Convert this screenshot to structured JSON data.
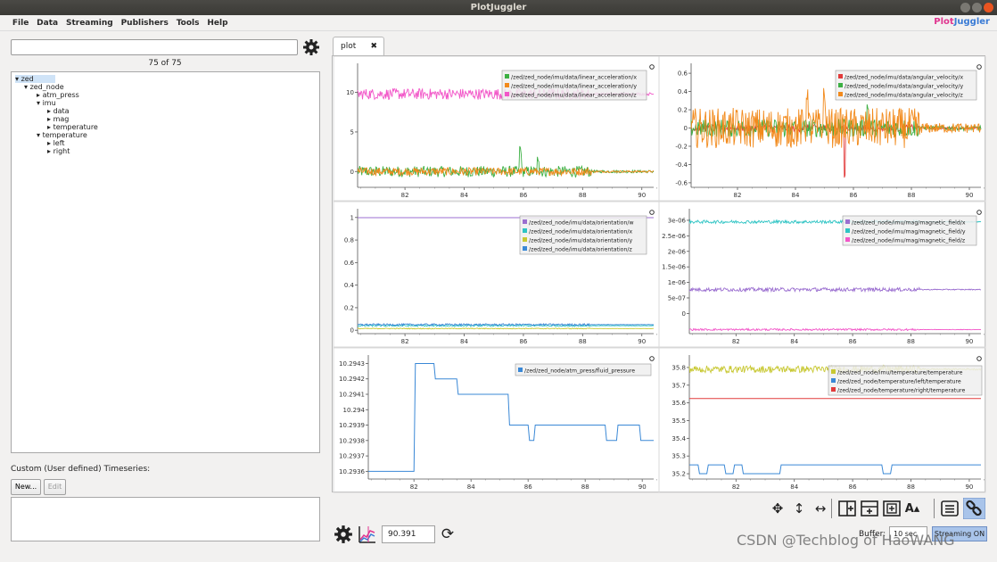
{
  "window": {
    "title": "PlotJuggler"
  },
  "menu": [
    "File",
    "Data",
    "Streaming",
    "Publishers",
    "Tools",
    "Help"
  ],
  "logo": {
    "part1": "Plot",
    "part2": "Juggler"
  },
  "left": {
    "count": "75 of 75",
    "tree": [
      {
        "label": "zed",
        "depth": 0,
        "arrow": "▾"
      },
      {
        "label": "zed_node",
        "depth": 1,
        "arrow": "▾"
      },
      {
        "label": "atm_press",
        "depth": 2,
        "arrow": "▸"
      },
      {
        "label": "imu",
        "depth": 2,
        "arrow": "▾"
      },
      {
        "label": "data",
        "depth": 3,
        "arrow": "▸"
      },
      {
        "label": "mag",
        "depth": 3,
        "arrow": "▸"
      },
      {
        "label": "temperature",
        "depth": 3,
        "arrow": "▸"
      },
      {
        "label": "temperature",
        "depth": 2,
        "arrow": "▾"
      },
      {
        "label": "left",
        "depth": 3,
        "arrow": "▸"
      },
      {
        "label": "right",
        "depth": 3,
        "arrow": "▸"
      }
    ],
    "custom_label": "Custom (User defined) Timeseries:",
    "new_label": "New...",
    "edit_label": "Edit"
  },
  "tab": {
    "label": "plot",
    "close": "✖"
  },
  "bottom": {
    "time_value": "90.391",
    "buffer_label": "Buffer:",
    "buffer_value": "10 sec",
    "streaming_label": "Streaming ON"
  },
  "watermark": "CSDN @Techblog of HaoWANG",
  "colors": {
    "green": "#3cb043",
    "orange": "#f28a1c",
    "magenta": "#f256c8",
    "red": "#e23b3b",
    "purple": "#9b6fd0",
    "cyan": "#2ec4c4",
    "olive": "#c8c832",
    "blue": "#3a88d6"
  },
  "chart_data": [
    {
      "type": "line",
      "x_ticks": [
        82,
        84,
        86,
        88,
        90
      ],
      "xlim": [
        80.4,
        90.4
      ],
      "ylim": [
        -2,
        13
      ],
      "y_ticks": [
        0,
        5,
        10
      ],
      "series": [
        {
          "name": "/zed/zed_node/imu/data/linear_acceleration/x",
          "color": "green",
          "kind": "noise",
          "base": 0,
          "amp": 0.7,
          "spikes": [
            [
              85.9,
              3.5
            ],
            [
              86.5,
              2
            ]
          ]
        },
        {
          "name": "/zed/zed_node/imu/data/linear_acceleration/y",
          "color": "orange",
          "kind": "noise",
          "base": 0,
          "amp": 0.5
        },
        {
          "name": "/zed/zed_node/imu/data/linear_acceleration/z",
          "color": "magenta",
          "kind": "noise",
          "base": 9.8,
          "amp": 0.7
        }
      ]
    },
    {
      "type": "line",
      "x_ticks": [
        82,
        84,
        86,
        88,
        90
      ],
      "xlim": [
        80.4,
        90.4
      ],
      "ylim": [
        -0.65,
        0.65
      ],
      "y_ticks": [
        -0.6,
        -0.4,
        -0.2,
        0,
        0.2,
        0.4,
        0.6
      ],
      "series": [
        {
          "name": "/zed/zed_node/imu/data/angular_velocity/x",
          "color": "red",
          "kind": "noise",
          "base": 0,
          "amp": 0.04,
          "spikes": [
            [
              85.7,
              -0.6
            ]
          ]
        },
        {
          "name": "/zed/zed_node/imu/data/angular_velocity/y",
          "color": "green",
          "kind": "noise",
          "base": 0,
          "amp": 0.1,
          "spikes": [
            [
              86.5,
              0.3
            ]
          ]
        },
        {
          "name": "/zed/zed_node/imu/data/angular_velocity/z",
          "color": "orange",
          "kind": "noise",
          "base": 0,
          "amp": 0.22,
          "spikes": [
            [
              84.4,
              0.5
            ],
            [
              85.0,
              0.45
            ]
          ]
        }
      ]
    },
    {
      "type": "line",
      "x_ticks": [
        82,
        84,
        86,
        88,
        90
      ],
      "xlim": [
        80.4,
        90.4
      ],
      "ylim": [
        -0.03,
        1.03
      ],
      "y_ticks": [
        0,
        0.2,
        0.4,
        0.6,
        0.8,
        1
      ],
      "series": [
        {
          "name": "/zed/zed_node/imu/data/orientation/w",
          "color": "purple",
          "kind": "flat",
          "base": 0.998,
          "amp": 0
        },
        {
          "name": "/zed/zed_node/imu/data/orientation/x",
          "color": "cyan",
          "kind": "noise",
          "base": 0.04,
          "amp": 0.006
        },
        {
          "name": "/zed/zed_node/imu/data/orientation/y",
          "color": "olive",
          "kind": "noise",
          "base": 0.015,
          "amp": 0.004
        },
        {
          "name": "/zed/zed_node/imu/data/orientation/z",
          "color": "blue",
          "kind": "noise",
          "base": 0.05,
          "amp": 0.008
        }
      ]
    },
    {
      "type": "line",
      "x_ticks": [
        82,
        84,
        86,
        88,
        90
      ],
      "xlim": [
        80.4,
        90.4
      ],
      "ylim": [
        -6.5e-07,
        3.2e-06
      ],
      "y_ticks": [
        0,
        5e-07,
        1e-06,
        1.5e-06,
        2e-06,
        2.5e-06,
        3e-06
      ],
      "y_tick_labels": [
        "0",
        "5e-07",
        "1e-06",
        "1.5e-06",
        "2e-06",
        "2.5e-06",
        "3e-06"
      ],
      "series": [
        {
          "name": "/zed/zed_node/imu/mag/magnetic_field/x",
          "color": "purple",
          "kind": "noise",
          "base": 7.7e-07,
          "amp": 6e-08
        },
        {
          "name": "/zed/zed_node/imu/mag/magnetic_field/y",
          "color": "cyan",
          "kind": "noise",
          "base": 2.95e-06,
          "amp": 5e-08
        },
        {
          "name": "/zed/zed_node/imu/mag/magnetic_field/z",
          "color": "magenta",
          "kind": "noise",
          "base": -5.2e-07,
          "amp": 3e-08
        }
      ]
    },
    {
      "type": "line",
      "x_ticks": [
        82,
        84,
        86,
        88,
        90
      ],
      "xlim": [
        80.4,
        90.4
      ],
      "ylim": [
        10.29355,
        10.29432
      ],
      "y_ticks": [
        10.2936,
        10.2937,
        10.2938,
        10.2939,
        10.294,
        10.2941,
        10.2942,
        10.2943
      ],
      "y_tick_labels": [
        "10.2936",
        "10.2937",
        "10.2938",
        "10.2939",
        "10.294",
        "10.2941",
        "10.2942",
        "10.2943"
      ],
      "series": [
        {
          "name": "/zed/zed_node/atm_press/fluid_pressure",
          "color": "blue",
          "kind": "step",
          "points": [
            [
              80.4,
              10.2936
            ],
            [
              82,
              10.2936
            ],
            [
              82.05,
              10.2943
            ],
            [
              82.7,
              10.2943
            ],
            [
              82.75,
              10.2942
            ],
            [
              83.5,
              10.2942
            ],
            [
              83.55,
              10.2941
            ],
            [
              85.3,
              10.2941
            ],
            [
              85.35,
              10.2939
            ],
            [
              86,
              10.2939
            ],
            [
              86.05,
              10.2938
            ],
            [
              86.2,
              10.2938
            ],
            [
              86.25,
              10.2939
            ],
            [
              88.7,
              10.2939
            ],
            [
              88.75,
              10.2938
            ],
            [
              89.1,
              10.2938
            ],
            [
              89.15,
              10.2939
            ],
            [
              89.9,
              10.2939
            ],
            [
              89.95,
              10.2938
            ],
            [
              90.4,
              10.2938
            ]
          ]
        }
      ]
    },
    {
      "type": "line",
      "x_ticks": [
        82,
        84,
        86,
        88,
        90
      ],
      "xlim": [
        80.4,
        90.4
      ],
      "ylim": [
        35.17,
        35.84
      ],
      "y_ticks": [
        35.2,
        35.3,
        35.4,
        35.5,
        35.6,
        35.7,
        35.8
      ],
      "series": [
        {
          "name": "/zed/zed_node/imu/temperature/temperature",
          "color": "olive",
          "kind": "noise",
          "base": 35.79,
          "amp": 0.02
        },
        {
          "name": "/zed/zed_node/temperature/left/temperature",
          "color": "blue",
          "kind": "step",
          "points": [
            [
              80.4,
              35.25
            ],
            [
              80.7,
              35.25
            ],
            [
              80.75,
              35.2
            ],
            [
              81.0,
              35.2
            ],
            [
              81.05,
              35.25
            ],
            [
              81.6,
              35.25
            ],
            [
              81.65,
              35.2
            ],
            [
              81.9,
              35.2
            ],
            [
              81.95,
              35.25
            ],
            [
              82.2,
              35.25
            ],
            [
              82.25,
              35.2
            ],
            [
              83.5,
              35.2
            ],
            [
              83.55,
              35.25
            ],
            [
              87.0,
              35.25
            ],
            [
              87.05,
              35.2
            ],
            [
              87.3,
              35.2
            ],
            [
              87.35,
              35.25
            ],
            [
              90.4,
              35.25
            ]
          ]
        },
        {
          "name": "/zed/zed_node/temperature/right/temperature",
          "color": "red",
          "kind": "flat",
          "base": 35.625,
          "amp": 0
        }
      ]
    }
  ]
}
